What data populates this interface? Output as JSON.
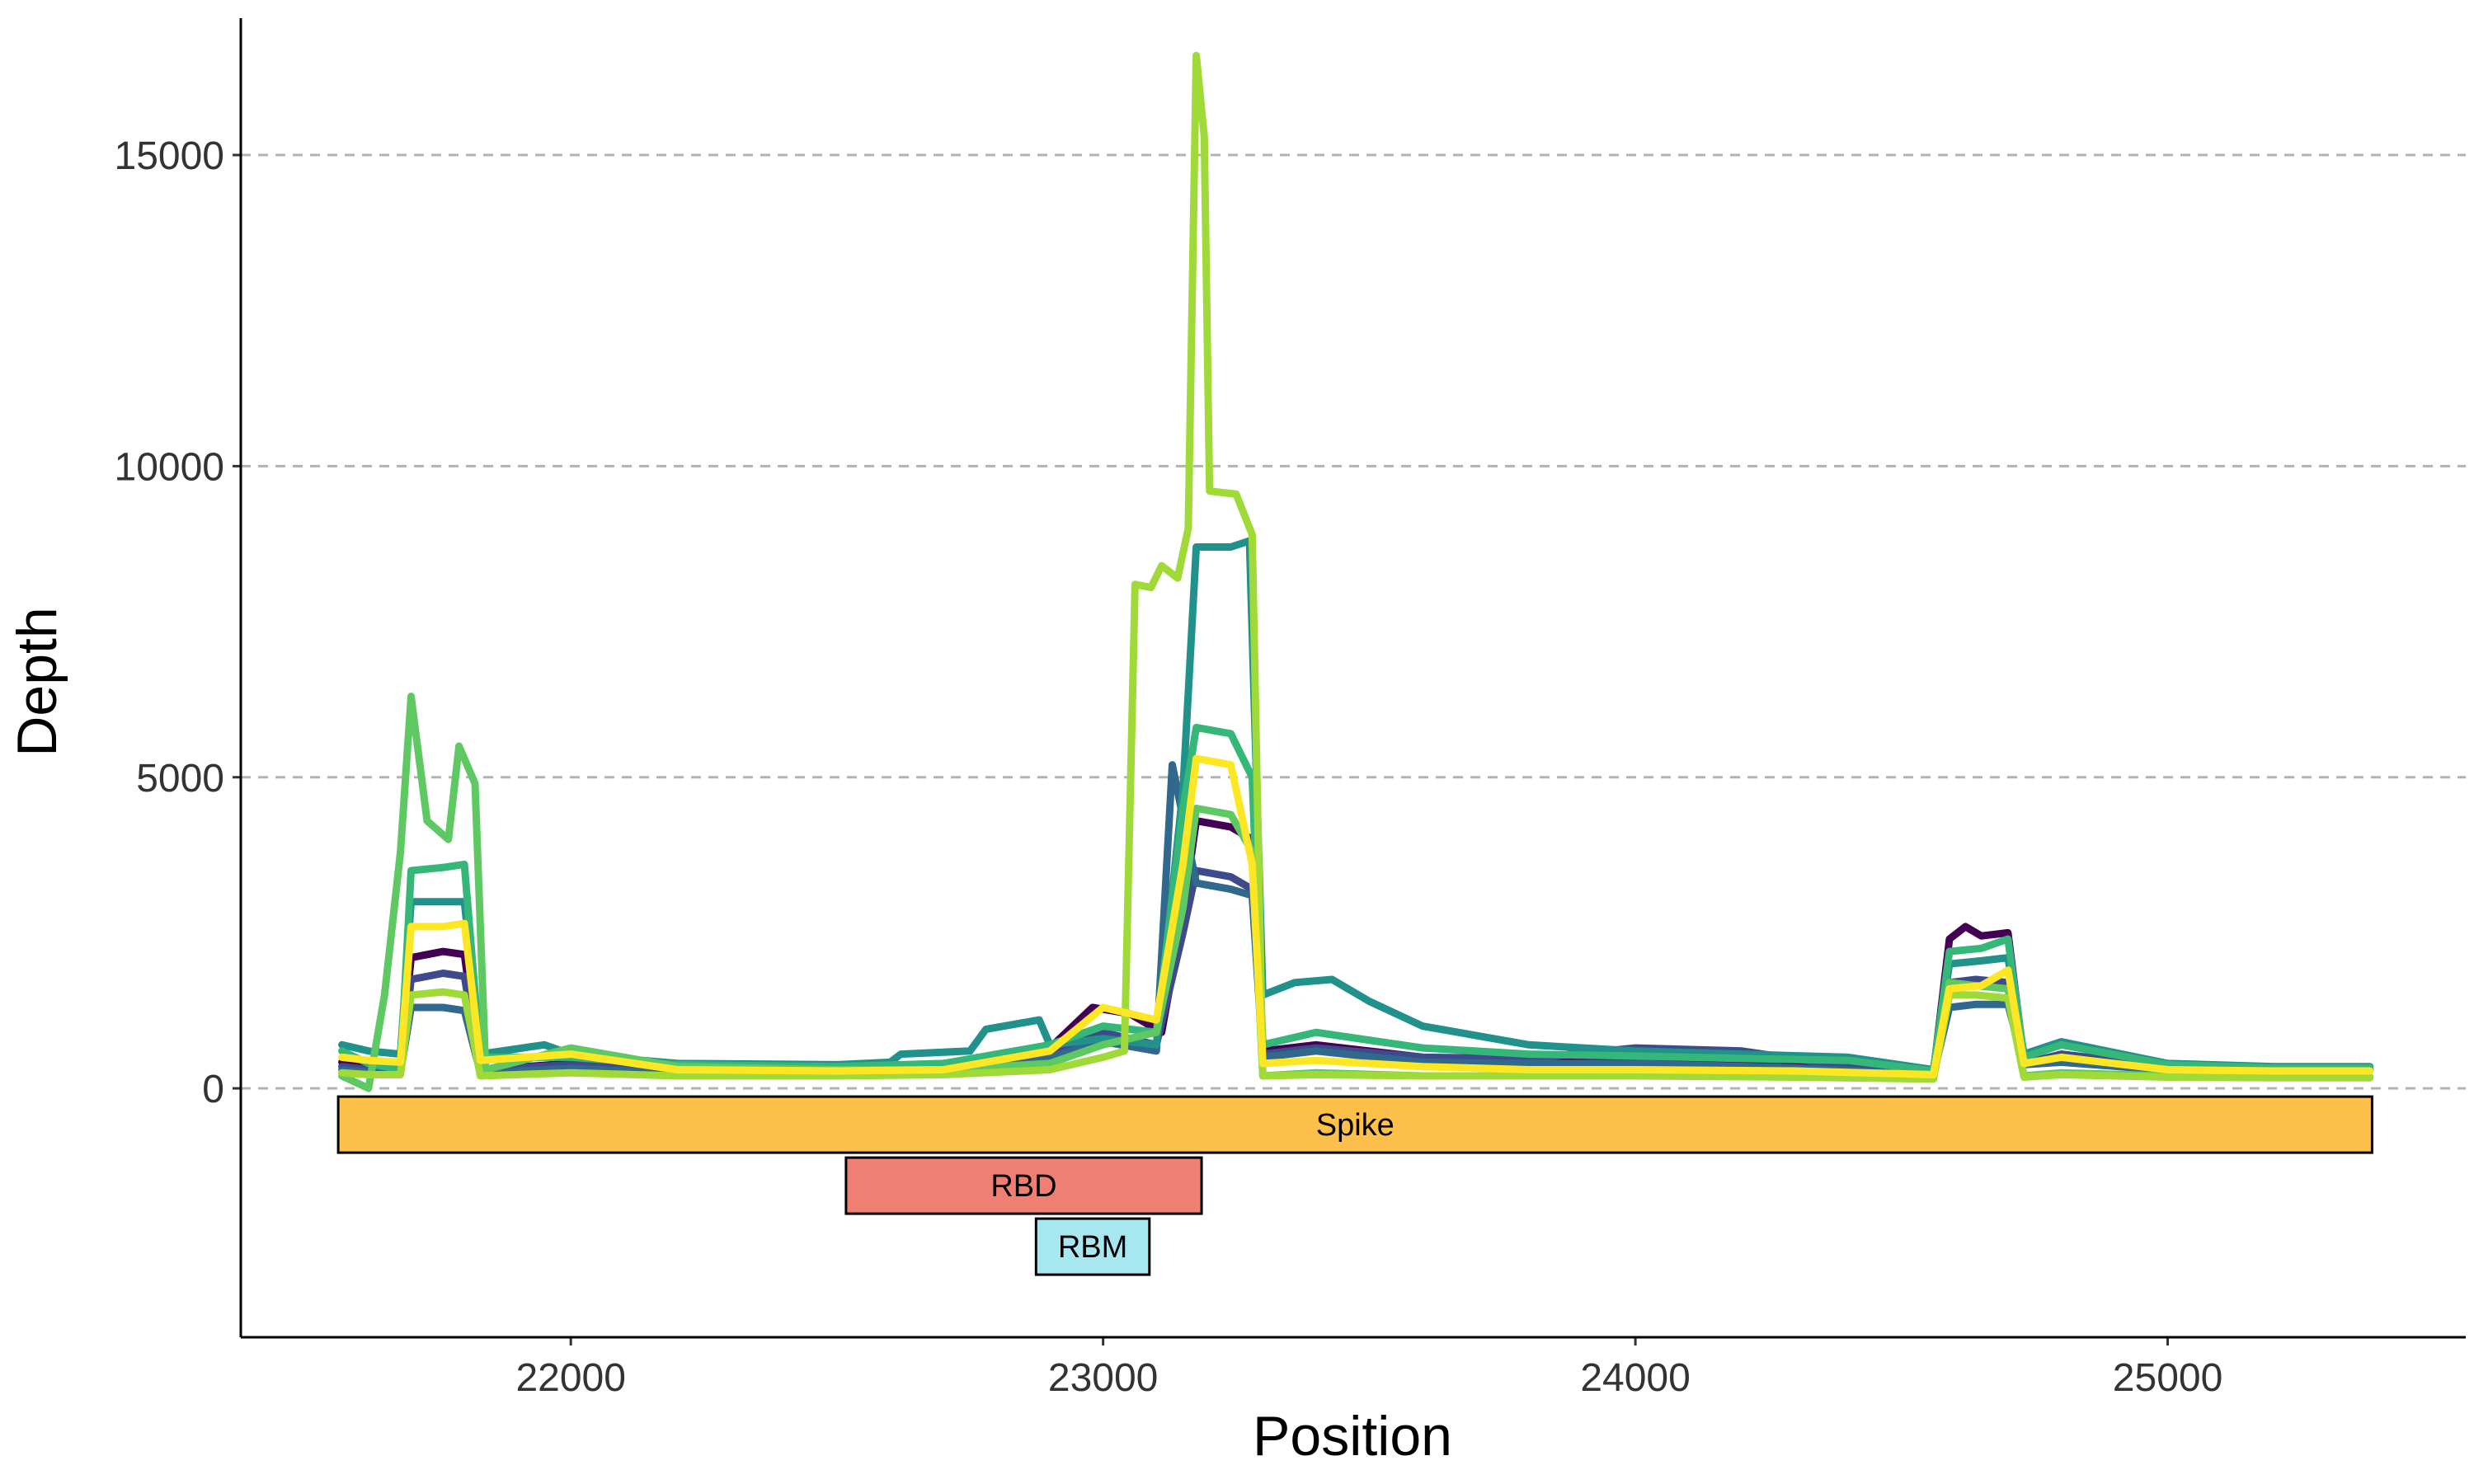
{
  "chart_data": {
    "type": "line",
    "title": "",
    "xlabel": "Position",
    "ylabel": "Depth",
    "xlim": [
      21380,
      25560
    ],
    "ylim": [
      -4000,
      17200
    ],
    "x_ticks": [
      22000,
      23000,
      24000,
      25000
    ],
    "x_tick_labels": [
      "22000",
      "23000",
      "24000",
      "25000"
    ],
    "y_ticks": [
      0,
      5000,
      10000,
      15000
    ],
    "y_tick_labels": [
      "0",
      "5000",
      "10000",
      "15000"
    ],
    "grid": "horizontal dashed",
    "legend": "none",
    "series": [
      {
        "color": "#440154",
        "points": [
          [
            21570,
            420
          ],
          [
            21620,
            360
          ],
          [
            21680,
            360
          ],
          [
            21700,
            2100
          ],
          [
            21760,
            2200
          ],
          [
            21800,
            2150
          ],
          [
            21830,
            300
          ],
          [
            22000,
            400
          ],
          [
            22200,
            280
          ],
          [
            22500,
            300
          ],
          [
            22700,
            350
          ],
          [
            22900,
            650
          ],
          [
            22980,
            1300
          ],
          [
            23050,
            1200
          ],
          [
            23110,
            900
          ],
          [
            23150,
            2800
          ],
          [
            23175,
            4300
          ],
          [
            23240,
            4200
          ],
          [
            23280,
            4000
          ],
          [
            23300,
            600
          ],
          [
            23400,
            700
          ],
          [
            23600,
            500
          ],
          [
            23800,
            450
          ],
          [
            24000,
            450
          ],
          [
            24300,
            350
          ],
          [
            24560,
            250
          ],
          [
            24590,
            2400
          ],
          [
            24620,
            2600
          ],
          [
            24650,
            2450
          ],
          [
            24700,
            2500
          ],
          [
            24730,
            450
          ],
          [
            24800,
            500
          ],
          [
            25000,
            320
          ],
          [
            25200,
            300
          ],
          [
            25380,
            300
          ]
        ]
      },
      {
        "color": "#3e4a89",
        "points": [
          [
            21570,
            350
          ],
          [
            21620,
            300
          ],
          [
            21680,
            300
          ],
          [
            21700,
            1750
          ],
          [
            21760,
            1850
          ],
          [
            21800,
            1800
          ],
          [
            21830,
            300
          ],
          [
            22000,
            380
          ],
          [
            22200,
            280
          ],
          [
            22500,
            300
          ],
          [
            22700,
            330
          ],
          [
            22900,
            600
          ],
          [
            23000,
            900
          ],
          [
            23100,
            700
          ],
          [
            23150,
            2500
          ],
          [
            23175,
            3500
          ],
          [
            23240,
            3400
          ],
          [
            23280,
            3200
          ],
          [
            23300,
            550
          ],
          [
            23400,
            650
          ],
          [
            23600,
            500
          ],
          [
            23800,
            480
          ],
          [
            24000,
            650
          ],
          [
            24200,
            600
          ],
          [
            24400,
            350
          ],
          [
            24560,
            250
          ],
          [
            24590,
            1700
          ],
          [
            24640,
            1750
          ],
          [
            24700,
            1700
          ],
          [
            24730,
            400
          ],
          [
            24800,
            550
          ],
          [
            25000,
            350
          ],
          [
            25200,
            300
          ],
          [
            25380,
            300
          ]
        ]
      },
      {
        "color": "#31688e",
        "points": [
          [
            21570,
            300
          ],
          [
            21620,
            260
          ],
          [
            21680,
            260
          ],
          [
            21700,
            1300
          ],
          [
            21760,
            1300
          ],
          [
            21800,
            1250
          ],
          [
            21830,
            250
          ],
          [
            22000,
            320
          ],
          [
            22200,
            250
          ],
          [
            22500,
            270
          ],
          [
            22700,
            300
          ],
          [
            22900,
            500
          ],
          [
            23000,
            750
          ],
          [
            23100,
            600
          ],
          [
            23130,
            5200
          ],
          [
            23175,
            3300
          ],
          [
            23240,
            3200
          ],
          [
            23280,
            3100
          ],
          [
            23300,
            500
          ],
          [
            23400,
            600
          ],
          [
            23600,
            420
          ],
          [
            23800,
            400
          ],
          [
            24000,
            400
          ],
          [
            24300,
            330
          ],
          [
            24560,
            220
          ],
          [
            24590,
            1300
          ],
          [
            24640,
            1350
          ],
          [
            24700,
            1350
          ],
          [
            24730,
            380
          ],
          [
            24800,
            420
          ],
          [
            25000,
            290
          ],
          [
            25200,
            280
          ],
          [
            25380,
            280
          ]
        ]
      },
      {
        "color": "#21918c",
        "points": [
          [
            21570,
            700
          ],
          [
            21620,
            600
          ],
          [
            21680,
            550
          ],
          [
            21700,
            3000
          ],
          [
            21760,
            3000
          ],
          [
            21800,
            3000
          ],
          [
            21830,
            550
          ],
          [
            21950,
            700
          ],
          [
            22000,
            550
          ],
          [
            22200,
            400
          ],
          [
            22500,
            380
          ],
          [
            22600,
            420
          ],
          [
            22620,
            550
          ],
          [
            22750,
            600
          ],
          [
            22780,
            950
          ],
          [
            22880,
            1100
          ],
          [
            22900,
            700
          ],
          [
            23000,
            800
          ],
          [
            23100,
            700
          ],
          [
            23150,
            4800
          ],
          [
            23175,
            8700
          ],
          [
            23240,
            8700
          ],
          [
            23275,
            8800
          ],
          [
            23300,
            1500
          ],
          [
            23360,
            1700
          ],
          [
            23430,
            1750
          ],
          [
            23500,
            1400
          ],
          [
            23600,
            1000
          ],
          [
            23800,
            700
          ],
          [
            24000,
            600
          ],
          [
            24200,
            550
          ],
          [
            24400,
            500
          ],
          [
            24560,
            300
          ],
          [
            24590,
            2000
          ],
          [
            24650,
            2050
          ],
          [
            24700,
            2100
          ],
          [
            24730,
            550
          ],
          [
            24800,
            750
          ],
          [
            25000,
            400
          ],
          [
            25200,
            350
          ],
          [
            25380,
            350
          ]
        ]
      },
      {
        "color": "#35b779",
        "points": [
          [
            21570,
            600
          ],
          [
            21620,
            400
          ],
          [
            21680,
            300
          ],
          [
            21700,
            3500
          ],
          [
            21760,
            3550
          ],
          [
            21800,
            3600
          ],
          [
            21830,
            500
          ],
          [
            22000,
            500
          ],
          [
            22200,
            380
          ],
          [
            22500,
            350
          ],
          [
            22700,
            400
          ],
          [
            22900,
            700
          ],
          [
            23000,
            1000
          ],
          [
            23100,
            900
          ],
          [
            23150,
            4500
          ],
          [
            23175,
            5800
          ],
          [
            23240,
            5700
          ],
          [
            23280,
            5000
          ],
          [
            23300,
            700
          ],
          [
            23400,
            900
          ],
          [
            23600,
            650
          ],
          [
            23800,
            550
          ],
          [
            24000,
            520
          ],
          [
            24200,
            480
          ],
          [
            24400,
            450
          ],
          [
            24560,
            280
          ],
          [
            24590,
            2200
          ],
          [
            24650,
            2250
          ],
          [
            24700,
            2400
          ],
          [
            24730,
            500
          ],
          [
            24800,
            700
          ],
          [
            25000,
            380
          ],
          [
            25200,
            330
          ],
          [
            25380,
            330
          ]
        ]
      },
      {
        "color": "#5ec962",
        "points": [
          [
            21570,
            200
          ],
          [
            21620,
            0
          ],
          [
            21650,
            1500
          ],
          [
            21680,
            3800
          ],
          [
            21700,
            6300
          ],
          [
            21730,
            4300
          ],
          [
            21770,
            4000
          ],
          [
            21790,
            5500
          ],
          [
            21820,
            4900
          ],
          [
            21840,
            300
          ],
          [
            22000,
            650
          ],
          [
            22200,
            350
          ],
          [
            22500,
            300
          ],
          [
            22700,
            300
          ],
          [
            22900,
            400
          ],
          [
            23000,
            700
          ],
          [
            23100,
            900
          ],
          [
            23150,
            2900
          ],
          [
            23175,
            4500
          ],
          [
            23240,
            4400
          ],
          [
            23280,
            3800
          ],
          [
            23300,
            200
          ],
          [
            23400,
            250
          ],
          [
            23600,
            200
          ],
          [
            23800,
            200
          ],
          [
            24000,
            200
          ],
          [
            24300,
            200
          ],
          [
            24560,
            150
          ],
          [
            24590,
            1700
          ],
          [
            24640,
            1650
          ],
          [
            24700,
            1600
          ],
          [
            24730,
            200
          ],
          [
            24800,
            250
          ],
          [
            25000,
            200
          ],
          [
            25200,
            180
          ],
          [
            25380,
            180
          ]
        ]
      },
      {
        "color": "#a0da39",
        "points": [
          [
            21570,
            250
          ],
          [
            21620,
            220
          ],
          [
            21680,
            220
          ],
          [
            21700,
            1500
          ],
          [
            21760,
            1550
          ],
          [
            21800,
            1500
          ],
          [
            21830,
            200
          ],
          [
            22000,
            250
          ],
          [
            22200,
            200
          ],
          [
            22500,
            200
          ],
          [
            22700,
            220
          ],
          [
            22900,
            300
          ],
          [
            23000,
            500
          ],
          [
            23040,
            600
          ],
          [
            23060,
            8100
          ],
          [
            23090,
            8050
          ],
          [
            23110,
            8400
          ],
          [
            23140,
            8200
          ],
          [
            23160,
            9000
          ],
          [
            23175,
            16600
          ],
          [
            23190,
            15300
          ],
          [
            23200,
            9600
          ],
          [
            23250,
            9550
          ],
          [
            23280,
            8900
          ],
          [
            23300,
            200
          ],
          [
            23400,
            220
          ],
          [
            23600,
            200
          ],
          [
            23800,
            200
          ],
          [
            24000,
            200
          ],
          [
            24300,
            180
          ],
          [
            24560,
            150
          ],
          [
            24590,
            1500
          ],
          [
            24640,
            1500
          ],
          [
            24700,
            1450
          ],
          [
            24730,
            180
          ],
          [
            24800,
            220
          ],
          [
            25000,
            180
          ],
          [
            25200,
            170
          ],
          [
            25380,
            170
          ]
        ]
      },
      {
        "color": "#fde725",
        "points": [
          [
            21570,
            500
          ],
          [
            21620,
            450
          ],
          [
            21680,
            420
          ],
          [
            21700,
            2600
          ],
          [
            21760,
            2600
          ],
          [
            21800,
            2650
          ],
          [
            21830,
            450
          ],
          [
            22000,
            550
          ],
          [
            22200,
            300
          ],
          [
            22500,
            280
          ],
          [
            22700,
            300
          ],
          [
            22900,
            600
          ],
          [
            23000,
            1300
          ],
          [
            23100,
            1100
          ],
          [
            23150,
            3600
          ],
          [
            23175,
            5300
          ],
          [
            23240,
            5200
          ],
          [
            23280,
            3600
          ],
          [
            23300,
            400
          ],
          [
            23400,
            450
          ],
          [
            23600,
            350
          ],
          [
            23800,
            300
          ],
          [
            24000,
            300
          ],
          [
            24300,
            280
          ],
          [
            24560,
            220
          ],
          [
            24590,
            1600
          ],
          [
            24650,
            1650
          ],
          [
            24700,
            1900
          ],
          [
            24730,
            400
          ],
          [
            24800,
            500
          ],
          [
            25000,
            300
          ],
          [
            25200,
            280
          ],
          [
            25380,
            280
          ]
        ]
      }
    ],
    "annotations": [
      {
        "label": "Spike",
        "start": 21563,
        "end": 25384,
        "color": "#fdc04a",
        "row": 0
      },
      {
        "label": "RBD",
        "start": 22517,
        "end": 23185,
        "color": "#ee7f72",
        "row": 1
      },
      {
        "label": "RBM",
        "start": 22874,
        "end": 23087,
        "color": "#a7e7ef",
        "row": 2
      }
    ]
  }
}
